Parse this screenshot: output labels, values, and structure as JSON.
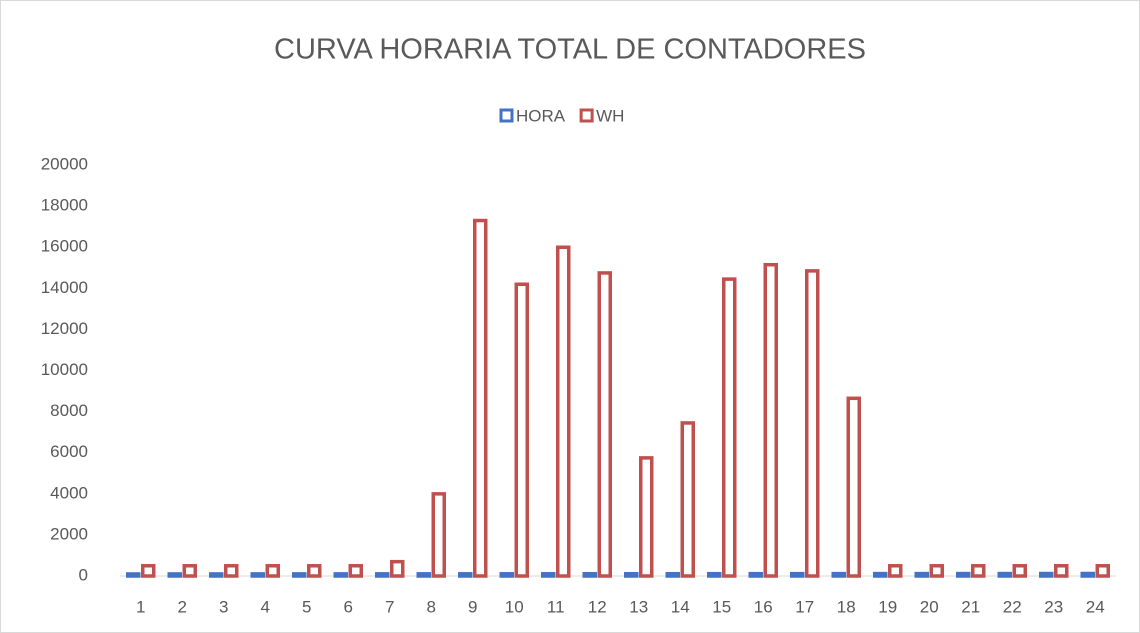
{
  "chart_data": {
    "type": "bar",
    "title": "CURVA HORARIA TOTAL DE CONTADORES",
    "categories": [
      "1",
      "2",
      "3",
      "4",
      "5",
      "6",
      "7",
      "8",
      "9",
      "10",
      "11",
      "12",
      "13",
      "14",
      "15",
      "16",
      "17",
      "18",
      "19",
      "20",
      "21",
      "22",
      "23",
      "24"
    ],
    "series": [
      {
        "name": "HORA",
        "color": "#4472c4",
        "values": [
          1,
          2,
          3,
          4,
          5,
          6,
          7,
          8,
          9,
          10,
          11,
          12,
          13,
          14,
          15,
          16,
          17,
          18,
          19,
          20,
          21,
          22,
          23,
          24
        ]
      },
      {
        "name": "WH",
        "color": "#c0504d",
        "values": [
          400,
          400,
          400,
          400,
          400,
          400,
          600,
          3900,
          17200,
          14100,
          15900,
          14650,
          5650,
          7350,
          14350,
          15050,
          14750,
          8550,
          400,
          400,
          400,
          400,
          400,
          400
        ]
      }
    ],
    "ylim": [
      0,
      20000
    ],
    "yticks": [
      0,
      2000,
      4000,
      6000,
      8000,
      10000,
      12000,
      14000,
      16000,
      18000,
      20000
    ],
    "legend": "top",
    "grid": false
  }
}
